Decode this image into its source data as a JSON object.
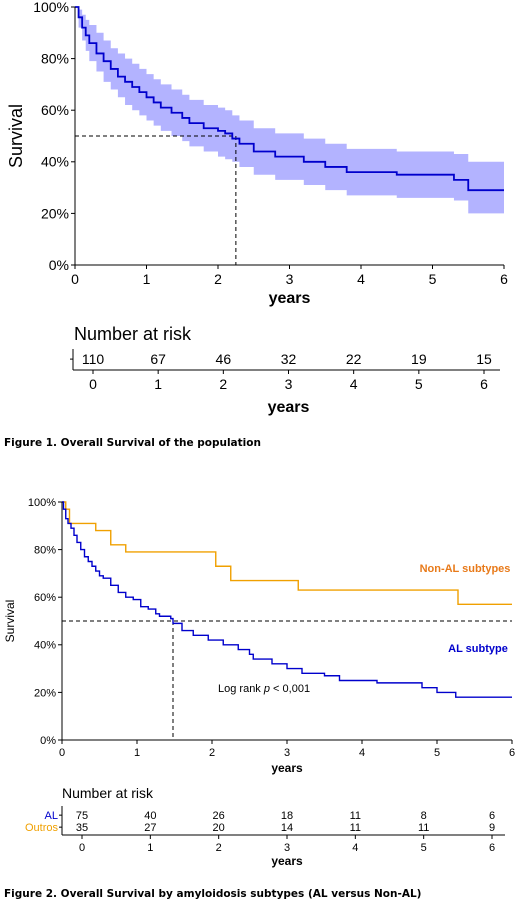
{
  "chart_data": [
    {
      "type": "line",
      "ylabel": "Survival",
      "xlabel": "years",
      "xlim": [
        0,
        6
      ],
      "ylim": [
        0,
        100
      ],
      "xticks": [
        "0",
        "1",
        "2",
        "3",
        "4",
        "5",
        "6"
      ],
      "yticks": [
        "0%",
        "20%",
        "40%",
        "60%",
        "80%",
        "100%"
      ],
      "median": {
        "x": 2.25,
        "y": 50
      },
      "series": [
        {
          "color": "#0000cc",
          "band_color": "#b3b3ff",
          "x": [
            0,
            0.05,
            0.1,
            0.15,
            0.2,
            0.3,
            0.4,
            0.5,
            0.6,
            0.7,
            0.8,
            0.9,
            1.0,
            1.1,
            1.2,
            1.35,
            1.5,
            1.6,
            1.8,
            2.0,
            2.1,
            2.2,
            2.3,
            2.5,
            2.8,
            3.2,
            3.5,
            3.8,
            4.5,
            5.3,
            5.5,
            6.0
          ],
          "y": [
            100,
            96,
            92,
            89,
            86,
            82,
            79,
            76,
            73,
            71,
            69,
            67,
            65,
            63,
            61,
            59,
            57,
            55,
            53,
            52,
            51,
            49,
            47,
            44,
            42,
            40,
            38,
            36,
            35,
            33,
            29,
            29
          ],
          "lower": [
            100,
            92,
            87,
            83,
            79,
            75,
            71,
            68,
            65,
            62,
            60,
            58,
            56,
            54,
            52,
            50,
            48,
            46,
            44,
            42,
            41,
            40,
            38,
            35,
            33,
            31,
            29,
            27,
            26,
            25,
            20,
            20
          ],
          "upper": [
            100,
            99,
            97,
            95,
            93,
            90,
            87,
            84,
            82,
            80,
            78,
            76,
            74,
            72,
            70,
            68,
            66,
            64,
            62,
            61,
            60,
            58,
            56,
            53,
            51,
            49,
            47,
            45,
            44,
            43,
            40,
            40
          ]
        }
      ],
      "risk_table": {
        "title": "Number at risk",
        "xlabel": "years",
        "rows": [
          {
            "label": "",
            "values": [
              "110",
              "67",
              "46",
              "32",
              "22",
              "19",
              "15"
            ]
          }
        ]
      }
    },
    {
      "type": "line",
      "ylabel": "Survival",
      "xlabel": "years",
      "xlim": [
        0,
        6
      ],
      "ylim": [
        0,
        100
      ],
      "xticks": [
        "0",
        "1",
        "2",
        "3",
        "4",
        "5",
        "6"
      ],
      "yticks": [
        "0%",
        "20%",
        "40%",
        "60%",
        "80%",
        "100%"
      ],
      "median": {
        "x": 1.48,
        "y": 50
      },
      "annotation": {
        "prefix": "Log rank ",
        "italic": "p",
        "suffix": " < 0,001"
      },
      "series": [
        {
          "name": "Non-AL subtypes",
          "color": "#f0a000",
          "label_color": "#e87a1a",
          "x": [
            0,
            0.05,
            0.1,
            0.45,
            0.65,
            0.85,
            2.05,
            2.25,
            2.85,
            3.15,
            4.6,
            5.28,
            6.0
          ],
          "y": [
            100,
            97,
            91,
            88,
            82,
            79,
            73,
            67,
            67,
            63,
            63,
            57,
            57
          ]
        },
        {
          "name": "AL subtype",
          "color": "#0000cc",
          "label_color": "#0000cc",
          "x": [
            0,
            0.02,
            0.05,
            0.08,
            0.12,
            0.16,
            0.2,
            0.25,
            0.3,
            0.35,
            0.4,
            0.45,
            0.5,
            0.55,
            0.65,
            0.75,
            0.85,
            0.95,
            1.05,
            1.15,
            1.25,
            1.3,
            1.45,
            1.48,
            1.6,
            1.75,
            1.95,
            2.15,
            2.35,
            2.5,
            2.55,
            2.8,
            3.0,
            3.2,
            3.5,
            3.7,
            4.2,
            4.8,
            5.0,
            5.25,
            6.0
          ],
          "y": [
            100,
            97,
            93,
            91,
            89,
            86,
            83,
            80,
            77,
            75,
            73,
            71,
            69,
            68,
            65,
            62,
            60,
            59,
            56,
            55,
            53,
            52,
            51,
            49,
            46,
            44,
            42,
            40,
            38,
            36,
            34,
            32,
            30,
            28,
            27,
            25,
            24,
            22,
            20,
            18,
            18
          ]
        }
      ],
      "risk_table": {
        "title": "Number at risk",
        "xlabel": "years",
        "rows": [
          {
            "label": "AL",
            "color": "#0000cc",
            "values": [
              "75",
              "40",
              "26",
              "18",
              "11",
              "8",
              "6"
            ]
          },
          {
            "label": "Outros",
            "color": "#f0a000",
            "values": [
              "35",
              "27",
              "20",
              "14",
              "11",
              "11",
              "9"
            ]
          }
        ]
      }
    }
  ],
  "captions": {
    "fig1": "Figure 1. Overall Survival of the population",
    "fig2": "Figure 2. Overall Survival by amyloidosis subtypes (AL versus Non-AL)"
  }
}
